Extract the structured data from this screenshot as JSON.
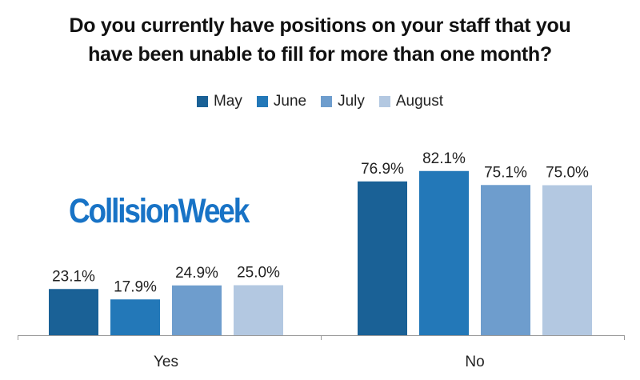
{
  "chart_data": {
    "type": "bar",
    "title_lines": [
      "Do you currently have positions on your staff that you",
      "have been unable to fill for more than one month?"
    ],
    "categories": [
      "Yes",
      "No"
    ],
    "series": [
      {
        "name": "May",
        "values": [
          23.1,
          76.9
        ],
        "labels": [
          "23.1%",
          "76.9%"
        ],
        "color": "#1a6196"
      },
      {
        "name": "June",
        "values": [
          17.9,
          82.1
        ],
        "labels": [
          "17.9%",
          "82.1%"
        ],
        "color": "#2378b8"
      },
      {
        "name": "July",
        "values": [
          24.9,
          75.1
        ],
        "labels": [
          "24.9%",
          "75.1%"
        ],
        "color": "#6e9dcd"
      },
      {
        "name": "August",
        "values": [
          25.0,
          75.0
        ],
        "labels": [
          "25.0%",
          "75.0%"
        ],
        "color": "#b3c8e1"
      }
    ],
    "ylim": [
      0,
      100
    ],
    "legend_position": "top-center",
    "grid": false
  },
  "watermark": {
    "text": "CollisionWeek",
    "color": "#1873c6"
  }
}
